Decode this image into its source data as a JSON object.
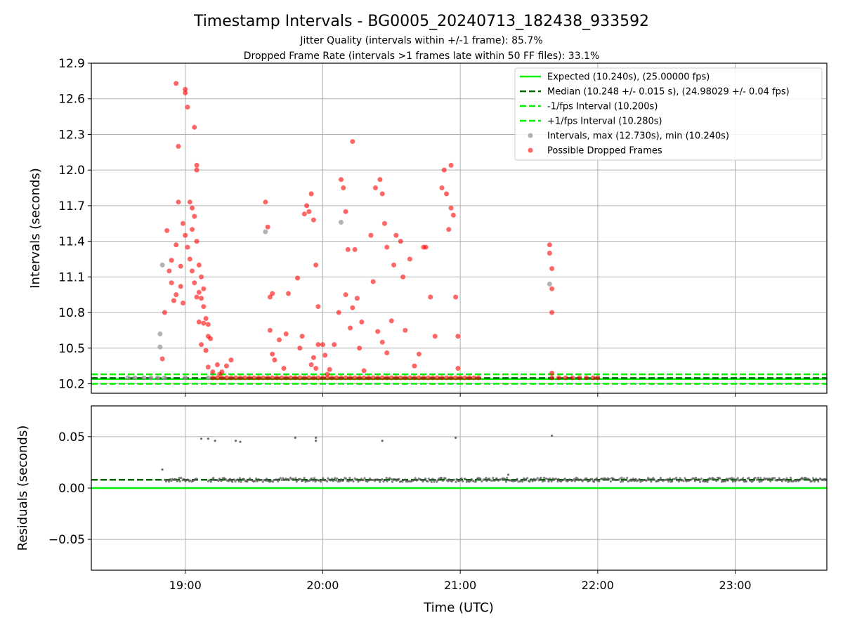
{
  "figure": {
    "title": "Timestamp Intervals - BG0005_20240713_182438_933592",
    "subtitle_1": "Jitter Quality (intervals within +/-1 frame): 85.7%",
    "subtitle_2": "Dropped Frame Rate (intervals >1 frames late within 50 FF files): 33.1%"
  },
  "colors": {
    "expected": "#00ee00",
    "median": "#006400",
    "interval_band": "#00ee00",
    "normal_points": "#999999",
    "dropped_points": "#ff0000",
    "residual_points": "#555555",
    "grid": "#b0b0b0"
  },
  "chart_data": [
    {
      "type": "scatter",
      "name": "intervals",
      "xlabel": "",
      "ylabel": "Intervals (seconds)",
      "xlim": [
        "18:19",
        "23:40"
      ],
      "ylim": [
        10.12,
        12.9
      ],
      "y_ticks": [
        10.2,
        10.5,
        10.8,
        11.1,
        11.4,
        11.7,
        12.0,
        12.3,
        12.6,
        12.9
      ],
      "y_tick_labels": [
        "10.2",
        "10.5",
        "10.8",
        "11.1",
        "11.4",
        "11.7",
        "12.0",
        "12.3",
        "12.6",
        "12.9"
      ],
      "grid": true,
      "legend_position": "upper right",
      "reference_lines": [
        {
          "name": "Expected (10.240s), (25.00000 fps)",
          "y": 10.24,
          "style": "solid",
          "color": "#00ee00"
        },
        {
          "name": "Median (10.248 +/- 0.015 s), (24.98029 +/- 0.04 fps)",
          "y": 10.248,
          "style": "dashed",
          "color": "#006400"
        },
        {
          "name": "-1/fps Interval (10.200s)",
          "y": 10.2,
          "style": "dashed",
          "color": "#00ee00"
        },
        {
          "name": "+1/fps Interval (10.280s)",
          "y": 10.28,
          "style": "dashed",
          "color": "#00ee00"
        }
      ],
      "series": [
        {
          "name": "Intervals, max (12.730s), min (10.240s)",
          "color": "#999999",
          "points": [
            [
              "18:35",
              10.25
            ],
            [
              "18:38",
              10.25
            ],
            [
              "18:42",
              10.25
            ],
            [
              "18:45",
              10.25
            ],
            [
              "18:48",
              10.25
            ],
            [
              "18:51",
              10.25
            ],
            [
              "18:50",
              11.2
            ],
            [
              "18:49",
              10.62
            ],
            [
              "18:49",
              10.51
            ],
            [
              "19:00",
              10.25
            ],
            [
              "19:10",
              10.25
            ],
            [
              "19:35",
              11.48
            ],
            [
              "20:08",
              11.56
            ],
            [
              "21:39",
              11.04
            ]
          ]
        },
        {
          "name": "Possible Dropped Frames",
          "color": "#ff0000",
          "points": [
            [
              "18:50",
              10.41
            ],
            [
              "18:51",
              10.8
            ],
            [
              "18:52",
              11.49
            ],
            [
              "18:53",
              11.15
            ],
            [
              "18:54",
              11.05
            ],
            [
              "18:55",
              10.9
            ],
            [
              "18:56",
              11.37
            ],
            [
              "18:57",
              11.73
            ],
            [
              "18:58",
              11.02
            ],
            [
              "18:59",
              10.88
            ],
            [
              "18:54",
              11.24
            ],
            [
              "18:58",
              11.19
            ],
            [
              "19:00",
              11.45
            ],
            [
              "19:01",
              11.35
            ],
            [
              "19:02",
              11.25
            ],
            [
              "18:56",
              10.95
            ],
            [
              "18:59",
              11.55
            ],
            [
              "18:56",
              12.73
            ],
            [
              "18:57",
              12.2
            ],
            [
              "19:00",
              12.68
            ],
            [
              "19:00",
              12.65
            ],
            [
              "19:01",
              12.53
            ],
            [
              "19:04",
              12.36
            ],
            [
              "19:05",
              12.04
            ],
            [
              "19:05",
              12.0
            ],
            [
              "19:02",
              11.73
            ],
            [
              "19:03",
              11.68
            ],
            [
              "19:04",
              11.61
            ],
            [
              "19:03",
              11.5
            ],
            [
              "19:05",
              11.4
            ],
            [
              "19:06",
              11.2
            ],
            [
              "19:07",
              11.1
            ],
            [
              "19:08",
              11.0
            ],
            [
              "19:03",
              11.15
            ],
            [
              "19:04",
              11.05
            ],
            [
              "19:05",
              10.93
            ],
            [
              "19:06",
              10.97
            ],
            [
              "19:07",
              10.92
            ],
            [
              "19:08",
              10.85
            ],
            [
              "19:06",
              10.72
            ],
            [
              "19:07",
              10.53
            ],
            [
              "19:08",
              10.71
            ],
            [
              "19:09",
              10.75
            ],
            [
              "19:10",
              10.7
            ],
            [
              "19:11",
              10.58
            ],
            [
              "19:09",
              10.48
            ],
            [
              "19:10",
              10.34
            ],
            [
              "19:10",
              10.6
            ],
            [
              "19:12",
              10.3
            ],
            [
              "19:14",
              10.36
            ],
            [
              "19:15",
              10.28
            ],
            [
              "19:16",
              10.3
            ],
            [
              "19:18",
              10.35
            ],
            [
              "19:20",
              10.4
            ],
            [
              "19:12",
              10.25
            ],
            [
              "19:14",
              10.25
            ],
            [
              "19:16",
              10.25
            ],
            [
              "19:18",
              10.25
            ],
            [
              "19:20",
              10.25
            ],
            [
              "19:22",
              10.25
            ],
            [
              "19:24",
              10.25
            ],
            [
              "19:26",
              10.25
            ],
            [
              "19:28",
              10.25
            ],
            [
              "19:30",
              10.25
            ],
            [
              "19:32",
              10.25
            ],
            [
              "19:34",
              10.25
            ],
            [
              "19:36",
              10.25
            ],
            [
              "19:38",
              10.25
            ],
            [
              "19:35",
              11.73
            ],
            [
              "19:36",
              11.52
            ],
            [
              "19:37",
              10.93
            ],
            [
              "19:38",
              10.96
            ],
            [
              "19:37",
              10.65
            ],
            [
              "19:38",
              10.45
            ],
            [
              "19:39",
              10.4
            ],
            [
              "19:41",
              10.57
            ],
            [
              "19:43",
              10.33
            ],
            [
              "19:44",
              10.62
            ],
            [
              "19:45",
              10.96
            ],
            [
              "19:40",
              10.25
            ],
            [
              "19:42",
              10.25
            ],
            [
              "19:44",
              10.25
            ],
            [
              "19:46",
              10.25
            ],
            [
              "19:48",
              10.25
            ],
            [
              "19:50",
              10.25
            ],
            [
              "19:52",
              10.25
            ],
            [
              "19:54",
              10.25
            ],
            [
              "19:56",
              10.25
            ],
            [
              "19:58",
              10.25
            ],
            [
              "19:49",
              11.09
            ],
            [
              "19:50",
              10.5
            ],
            [
              "19:51",
              10.6
            ],
            [
              "19:52",
              11.63
            ],
            [
              "19:53",
              11.7
            ],
            [
              "19:54",
              11.65
            ],
            [
              "19:55",
              11.8
            ],
            [
              "19:56",
              11.58
            ],
            [
              "19:57",
              11.2
            ],
            [
              "19:58",
              10.85
            ],
            [
              "19:55",
              10.36
            ],
            [
              "19:56",
              10.42
            ],
            [
              "19:57",
              10.33
            ],
            [
              "19:58",
              10.53
            ],
            [
              "20:00",
              10.53
            ],
            [
              "20:01",
              10.44
            ],
            [
              "20:03",
              10.32
            ],
            [
              "20:05",
              10.53
            ],
            [
              "20:07",
              10.8
            ],
            [
              "20:02",
              10.28
            ],
            [
              "20:08",
              11.92
            ],
            [
              "20:09",
              11.85
            ],
            [
              "20:10",
              11.65
            ],
            [
              "20:11",
              11.33
            ],
            [
              "20:10",
              10.95
            ],
            [
              "20:12",
              10.67
            ],
            [
              "20:13",
              10.84
            ],
            [
              "20:14",
              11.33
            ],
            [
              "20:15",
              10.92
            ],
            [
              "20:16",
              10.5
            ],
            [
              "20:13",
              12.24
            ],
            [
              "20:17",
              10.72
            ],
            [
              "20:18",
              10.31
            ],
            [
              "20:21",
              11.45
            ],
            [
              "20:22",
              11.06
            ],
            [
              "20:23",
              11.85
            ],
            [
              "20:25",
              11.92
            ],
            [
              "20:26",
              11.8
            ],
            [
              "20:27",
              11.55
            ],
            [
              "20:28",
              11.35
            ],
            [
              "20:24",
              10.64
            ],
            [
              "20:26",
              10.55
            ],
            [
              "20:28",
              10.46
            ],
            [
              "20:30",
              10.73
            ],
            [
              "20:31",
              11.2
            ],
            [
              "20:32",
              11.45
            ],
            [
              "20:34",
              11.4
            ],
            [
              "20:35",
              11.1
            ],
            [
              "20:36",
              10.65
            ],
            [
              "20:38",
              11.25
            ],
            [
              "20:40",
              10.35
            ],
            [
              "20:42",
              10.45
            ],
            [
              "20:44",
              11.35
            ],
            [
              "20:45",
              11.35
            ],
            [
              "20:47",
              10.93
            ],
            [
              "20:49",
              10.6
            ],
            [
              "20:52",
              11.85
            ],
            [
              "20:54",
              11.8
            ],
            [
              "20:55",
              11.5
            ],
            [
              "20:56",
              11.68
            ],
            [
              "20:57",
              11.62
            ],
            [
              "20:58",
              10.93
            ],
            [
              "20:59",
              10.6
            ],
            [
              "20:59",
              10.33
            ],
            [
              "20:53",
              12.0
            ],
            [
              "20:56",
              12.04
            ],
            [
              "20:00",
              10.25
            ],
            [
              "20:02",
              10.25
            ],
            [
              "20:04",
              10.25
            ],
            [
              "20:06",
              10.25
            ],
            [
              "20:08",
              10.25
            ],
            [
              "20:10",
              10.25
            ],
            [
              "20:12",
              10.25
            ],
            [
              "20:14",
              10.25
            ],
            [
              "20:16",
              10.25
            ],
            [
              "20:18",
              10.25
            ],
            [
              "20:20",
              10.25
            ],
            [
              "20:22",
              10.25
            ],
            [
              "20:24",
              10.25
            ],
            [
              "20:26",
              10.25
            ],
            [
              "20:28",
              10.25
            ],
            [
              "20:30",
              10.25
            ],
            [
              "20:32",
              10.25
            ],
            [
              "20:34",
              10.25
            ],
            [
              "20:36",
              10.25
            ],
            [
              "20:38",
              10.25
            ],
            [
              "20:40",
              10.25
            ],
            [
              "20:42",
              10.25
            ],
            [
              "20:44",
              10.25
            ],
            [
              "20:46",
              10.25
            ],
            [
              "20:48",
              10.25
            ],
            [
              "20:50",
              10.25
            ],
            [
              "20:52",
              10.25
            ],
            [
              "20:54",
              10.25
            ],
            [
              "20:56",
              10.25
            ],
            [
              "20:58",
              10.25
            ],
            [
              "21:00",
              10.25
            ],
            [
              "21:02",
              10.25
            ],
            [
              "21:04",
              10.25
            ],
            [
              "21:06",
              10.25
            ],
            [
              "21:08",
              10.25
            ],
            [
              "21:39",
              11.37
            ],
            [
              "21:39",
              11.3
            ],
            [
              "21:40",
              11.17
            ],
            [
              "21:40",
              11.0
            ],
            [
              "21:40",
              10.8
            ],
            [
              "21:40",
              10.29
            ],
            [
              "21:40",
              10.25
            ],
            [
              "21:43",
              10.25
            ],
            [
              "21:46",
              10.25
            ],
            [
              "21:49",
              10.25
            ],
            [
              "21:52",
              10.25
            ],
            [
              "21:55",
              10.25
            ],
            [
              "21:58",
              10.25
            ],
            [
              "22:00",
              10.25
            ]
          ]
        }
      ]
    },
    {
      "type": "scatter",
      "name": "residuals",
      "xlabel": "Time (UTC)",
      "ylabel": "Residuals (seconds)",
      "xlim": [
        "18:19",
        "23:40"
      ],
      "ylim": [
        -0.08,
        0.08
      ],
      "y_ticks": [
        -0.05,
        0.0,
        0.05
      ],
      "y_tick_labels": [
        "−0.05",
        "0.00",
        "0.05"
      ],
      "x_ticks": [
        "19:00",
        "20:00",
        "21:00",
        "22:00",
        "23:00"
      ],
      "x_tick_labels": [
        "19:00",
        "20:00",
        "21:00",
        "22:00",
        "23:00"
      ],
      "grid": true,
      "reference_lines": [
        {
          "y": 0.0,
          "style": "solid",
          "color": "#00ee00"
        },
        {
          "y": 0.008,
          "style": "dashed",
          "color": "#006400"
        }
      ],
      "series": [
        {
          "color": "#555555",
          "outliers": [
            [
              "18:50",
              0.018
            ],
            [
              "19:07",
              0.048
            ],
            [
              "19:10",
              0.048
            ],
            [
              "19:13",
              0.046
            ],
            [
              "19:22",
              0.046
            ],
            [
              "19:24",
              0.045
            ],
            [
              "19:48",
              0.049
            ],
            [
              "19:57",
              0.049
            ],
            [
              "19:57",
              0.046
            ],
            [
              "20:26",
              0.046
            ],
            [
              "20:58",
              0.049
            ],
            [
              "21:21",
              0.013
            ],
            [
              "21:40",
              0.051
            ]
          ],
          "baseline_value": 0.008,
          "baseline_spread": 0.002,
          "baseline_segments": [
            [
              "18:51",
              "19:05"
            ],
            [
              "19:10",
              "23:40"
            ]
          ]
        }
      ]
    }
  ]
}
